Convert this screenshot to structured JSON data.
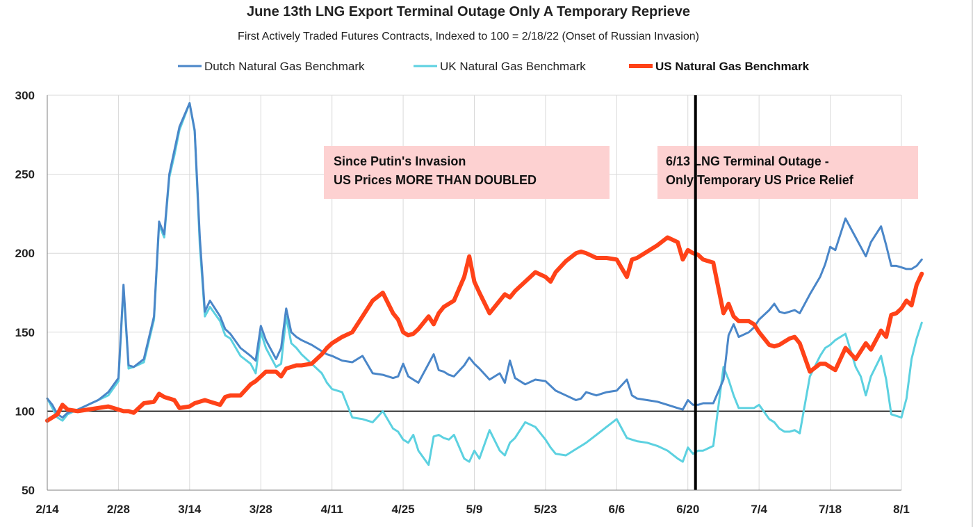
{
  "chart_data": {
    "type": "line",
    "title": "June 13th LNG Export Terminal Outage Only A Temporary Reprieve",
    "subtitle": "First Actively Traded Futures Contracts, Indexed to 100 = 2/18/22 (Onset of Russian Invasion)",
    "xlabel": "",
    "ylabel": "",
    "x_ticks": [
      "2/14",
      "2/28",
      "3/14",
      "3/28",
      "4/11",
      "4/25",
      "5/9",
      "5/23",
      "6/6",
      "6/20",
      "7/4",
      "7/18",
      "8/1"
    ],
    "y_ticks": [
      50,
      100,
      150,
      200,
      250,
      300
    ],
    "ylim": [
      50,
      300
    ],
    "x_range_days": [
      0,
      168
    ],
    "x_axis_note": "x values are days since 2/14",
    "grid": true,
    "legend_position": "top",
    "series": [
      {
        "name": "Dutch Natural Gas Benchmark",
        "color": "#4a86c8",
        "width": 3,
        "x": [
          0,
          1,
          2,
          3,
          4,
          6,
          8,
          10,
          12,
          14,
          15,
          16,
          17,
          19,
          21,
          22,
          23,
          24,
          25,
          26,
          28,
          29,
          30,
          31,
          32,
          34,
          35,
          36,
          38,
          40,
          41,
          42,
          43,
          45,
          46,
          47,
          48,
          49,
          50,
          52,
          54,
          55,
          56,
          58,
          60,
          62,
          64,
          66,
          68,
          69,
          70,
          71,
          72,
          73,
          75,
          76,
          77,
          78,
          79,
          80,
          82,
          83,
          84,
          85,
          87,
          89,
          90,
          91,
          92,
          94,
          96,
          98,
          99,
          100,
          102,
          104,
          105,
          106,
          108,
          110,
          112,
          114,
          115,
          116,
          118,
          120,
          122,
          124,
          125,
          126,
          127,
          128,
          129,
          131,
          133,
          134,
          135,
          136,
          138,
          139,
          140,
          142,
          143,
          144,
          145,
          146,
          147,
          148,
          150,
          152,
          153,
          154,
          155,
          157,
          159,
          160,
          161,
          162,
          164,
          165,
          166
        ],
        "values": [
          108,
          104,
          98,
          96,
          99,
          101,
          104,
          107,
          112,
          121,
          180,
          129,
          128,
          133,
          160,
          220,
          212,
          250,
          265,
          280,
          295,
          278,
          210,
          163,
          170,
          160,
          152,
          149,
          140,
          135,
          132,
          154,
          145,
          133,
          140,
          165,
          150,
          147,
          145,
          142,
          138,
          136,
          135,
          132,
          131,
          135,
          124,
          123,
          121,
          122,
          130,
          122,
          120,
          118,
          130,
          136,
          126,
          125,
          123,
          122,
          129,
          134,
          130,
          127,
          120,
          124,
          118,
          132,
          121,
          117,
          120,
          119,
          116,
          113,
          110,
          107,
          108,
          112,
          110,
          112,
          113,
          120,
          110,
          108,
          107,
          106,
          104,
          102,
          101,
          107,
          104,
          104,
          105,
          105,
          120,
          148,
          155,
          147,
          150,
          153,
          158,
          164,
          168,
          163,
          162,
          163,
          164,
          162,
          174,
          185,
          193,
          204,
          202,
          222,
          210,
          204,
          198,
          207,
          217,
          205,
          192
        ]
      },
      {
        "name": "UK Natural Gas Benchmark",
        "color": "#5cd1e0",
        "width": 3,
        "x": [
          0,
          1,
          2,
          3,
          4,
          6,
          8,
          10,
          12,
          14,
          15,
          16,
          17,
          19,
          21,
          22,
          23,
          24,
          25,
          26,
          28,
          29,
          30,
          31,
          32,
          34,
          35,
          36,
          38,
          40,
          41,
          42,
          43,
          45,
          46,
          47,
          48,
          49,
          50,
          52,
          54,
          55,
          56,
          58,
          60,
          62,
          64,
          66,
          68,
          69,
          70,
          71,
          72,
          73,
          75,
          76,
          77,
          78,
          79,
          80,
          82,
          83,
          84,
          85,
          87,
          89,
          90,
          91,
          92,
          94,
          96,
          98,
          99,
          100,
          102,
          104,
          105,
          106,
          108,
          110,
          112,
          114,
          115,
          116,
          118,
          120,
          122,
          124,
          125,
          126,
          127,
          128,
          129,
          131,
          133,
          134,
          135,
          136,
          138,
          139,
          140,
          142,
          143,
          144,
          145,
          146,
          147,
          148,
          150,
          152,
          153,
          154,
          155,
          157,
          159,
          160,
          161,
          162,
          164,
          165,
          166
        ],
        "values": [
          108,
          102,
          96,
          94,
          98,
          101,
          104,
          107,
          110,
          119,
          178,
          127,
          128,
          131,
          158,
          218,
          210,
          248,
          262,
          278,
          295,
          277,
          205,
          160,
          166,
          157,
          148,
          146,
          135,
          130,
          124,
          150,
          140,
          128,
          130,
          160,
          143,
          140,
          136,
          130,
          124,
          118,
          114,
          112,
          96,
          95,
          93,
          100,
          89,
          87,
          82,
          80,
          85,
          75,
          66,
          84,
          85,
          83,
          82,
          85,
          70,
          68,
          75,
          70,
          88,
          75,
          72,
          80,
          83,
          93,
          90,
          82,
          77,
          73,
          72,
          76,
          78,
          80,
          85,
          90,
          95,
          83,
          82,
          81,
          80,
          78,
          75,
          70,
          68,
          77,
          73,
          75,
          75,
          78,
          128,
          120,
          110,
          102,
          102,
          102,
          104,
          95,
          93,
          89,
          87,
          87,
          88,
          86,
          122,
          135,
          140,
          142,
          145,
          149,
          128,
          122,
          110,
          122,
          135,
          120,
          98
        ]
      },
      {
        "name": "US Natural Gas Benchmark",
        "color": "#ff4218",
        "width": 6,
        "x": [
          0,
          1,
          2,
          3,
          4,
          6,
          8,
          10,
          12,
          14,
          15,
          16,
          17,
          19,
          21,
          22,
          23,
          24,
          25,
          26,
          28,
          29,
          30,
          31,
          32,
          34,
          35,
          36,
          38,
          40,
          41,
          42,
          43,
          45,
          46,
          47,
          48,
          49,
          50,
          52,
          54,
          55,
          56,
          58,
          60,
          62,
          64,
          66,
          68,
          69,
          70,
          71,
          72,
          73,
          75,
          76,
          77,
          78,
          79,
          80,
          82,
          83,
          84,
          85,
          87,
          89,
          90,
          91,
          92,
          94,
          96,
          98,
          99,
          100,
          102,
          104,
          105,
          106,
          108,
          110,
          112,
          114,
          115,
          116,
          118,
          120,
          122,
          124,
          125,
          126,
          127,
          128,
          129,
          131,
          133,
          134,
          135,
          136,
          138,
          139,
          140,
          142,
          143,
          144,
          145,
          146,
          147,
          148,
          150,
          152,
          153,
          154,
          155,
          157,
          159,
          160,
          161,
          162,
          164,
          165,
          166
        ],
        "values": [
          94,
          96,
          98,
          104,
          101,
          100,
          101,
          102,
          103,
          101,
          100,
          100,
          99,
          105,
          106,
          111,
          109,
          108,
          107,
          102,
          103,
          105,
          106,
          107,
          106,
          104,
          109,
          110,
          110,
          117,
          119,
          122,
          125,
          125,
          122,
          127,
          128,
          129,
          129,
          130,
          136,
          140,
          143,
          147,
          150,
          160,
          170,
          175,
          162,
          158,
          150,
          148,
          149,
          152,
          160,
          155,
          162,
          166,
          168,
          170,
          185,
          198,
          182,
          175,
          162,
          170,
          174,
          172,
          176,
          182,
          188,
          185,
          182,
          188,
          195,
          200,
          201,
          200,
          197,
          197,
          196,
          185,
          196,
          197,
          201,
          205,
          210,
          207,
          196,
          202,
          200,
          199,
          196,
          194,
          162,
          168,
          160,
          157,
          157,
          155,
          150,
          142,
          141,
          142,
          144,
          146,
          147,
          143,
          125,
          130,
          130,
          128,
          126,
          140,
          133,
          138,
          143,
          139,
          151,
          147,
          161
        ],
        "extra_x": [
          167,
          168,
          169,
          170,
          171,
          172
        ],
        "extra_values": [
          162,
          165,
          170,
          167,
          180,
          187
        ]
      }
    ],
    "extensions": {
      "dutch_extra_x": [
        167,
        168,
        169,
        170,
        171,
        172
      ],
      "dutch_extra_values": [
        192,
        191,
        190,
        190,
        192,
        196
      ],
      "uk_extra_x": [
        167,
        168,
        169,
        170,
        171,
        172
      ],
      "uk_extra_values": [
        97,
        96,
        108,
        133,
        146,
        156
      ]
    },
    "annotations": [
      {
        "name": "since-putin-box",
        "lines": [
          "Since Putin's Invasion",
          "US Prices MORE THAN DOUBLED"
        ],
        "box_color": "#fdd1d1"
      },
      {
        "name": "lng-outage-box",
        "lines": [
          "6/13 LNG Terminal Outage -",
          "Only Temporary US Price Relief"
        ],
        "box_color": "#fdd1d1"
      }
    ],
    "vertical_marker": {
      "label": "6/13 outage",
      "x_day": 127.5,
      "color": "#000000"
    },
    "reference_line": {
      "y": 100,
      "color": "#000000"
    }
  }
}
